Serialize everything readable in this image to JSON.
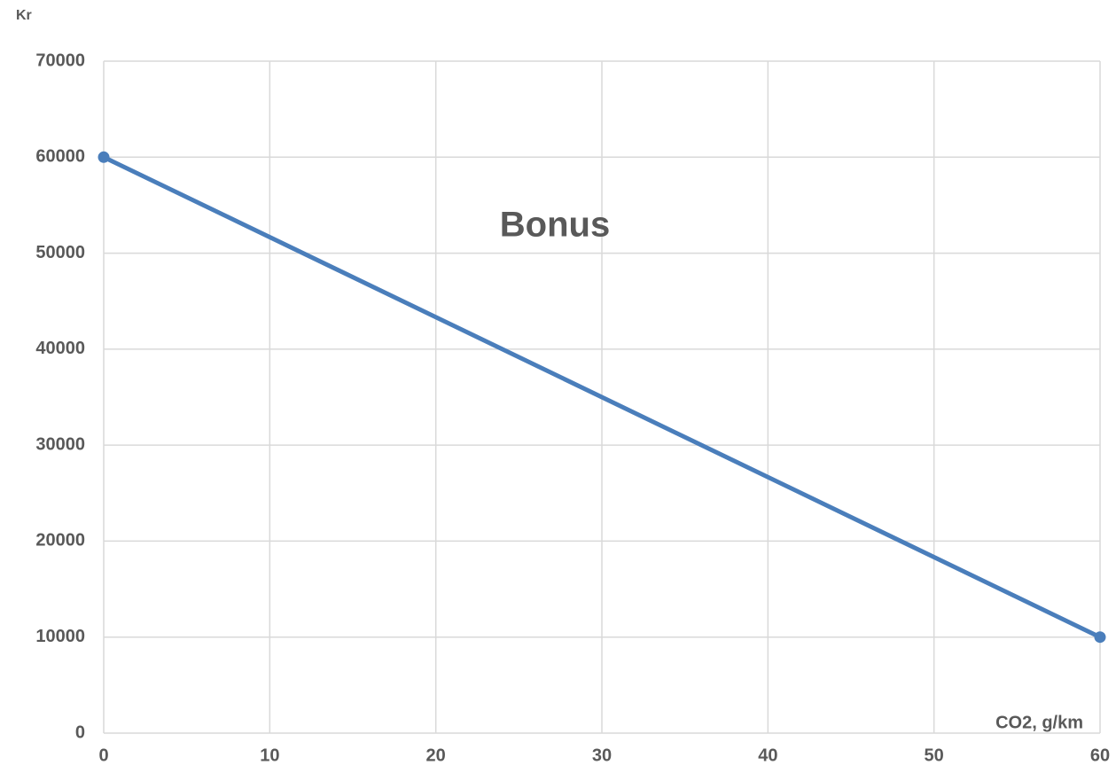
{
  "chart_data": {
    "type": "line",
    "title": "Bonus",
    "y_label": "Kr",
    "x_label": "CO2, g/km",
    "x": [
      0,
      60
    ],
    "series": [
      {
        "color": "#4a7ebb",
        "values": [
          60000,
          10000
        ]
      }
    ],
    "xlim": [
      0,
      60
    ],
    "xticks": [
      0,
      10,
      20,
      30,
      40,
      50,
      60
    ],
    "ylim": [
      0,
      70000
    ],
    "yticks": [
      0,
      10000,
      20000,
      30000,
      40000,
      50000,
      60000,
      70000
    ],
    "grid": true,
    "markers": true
  }
}
